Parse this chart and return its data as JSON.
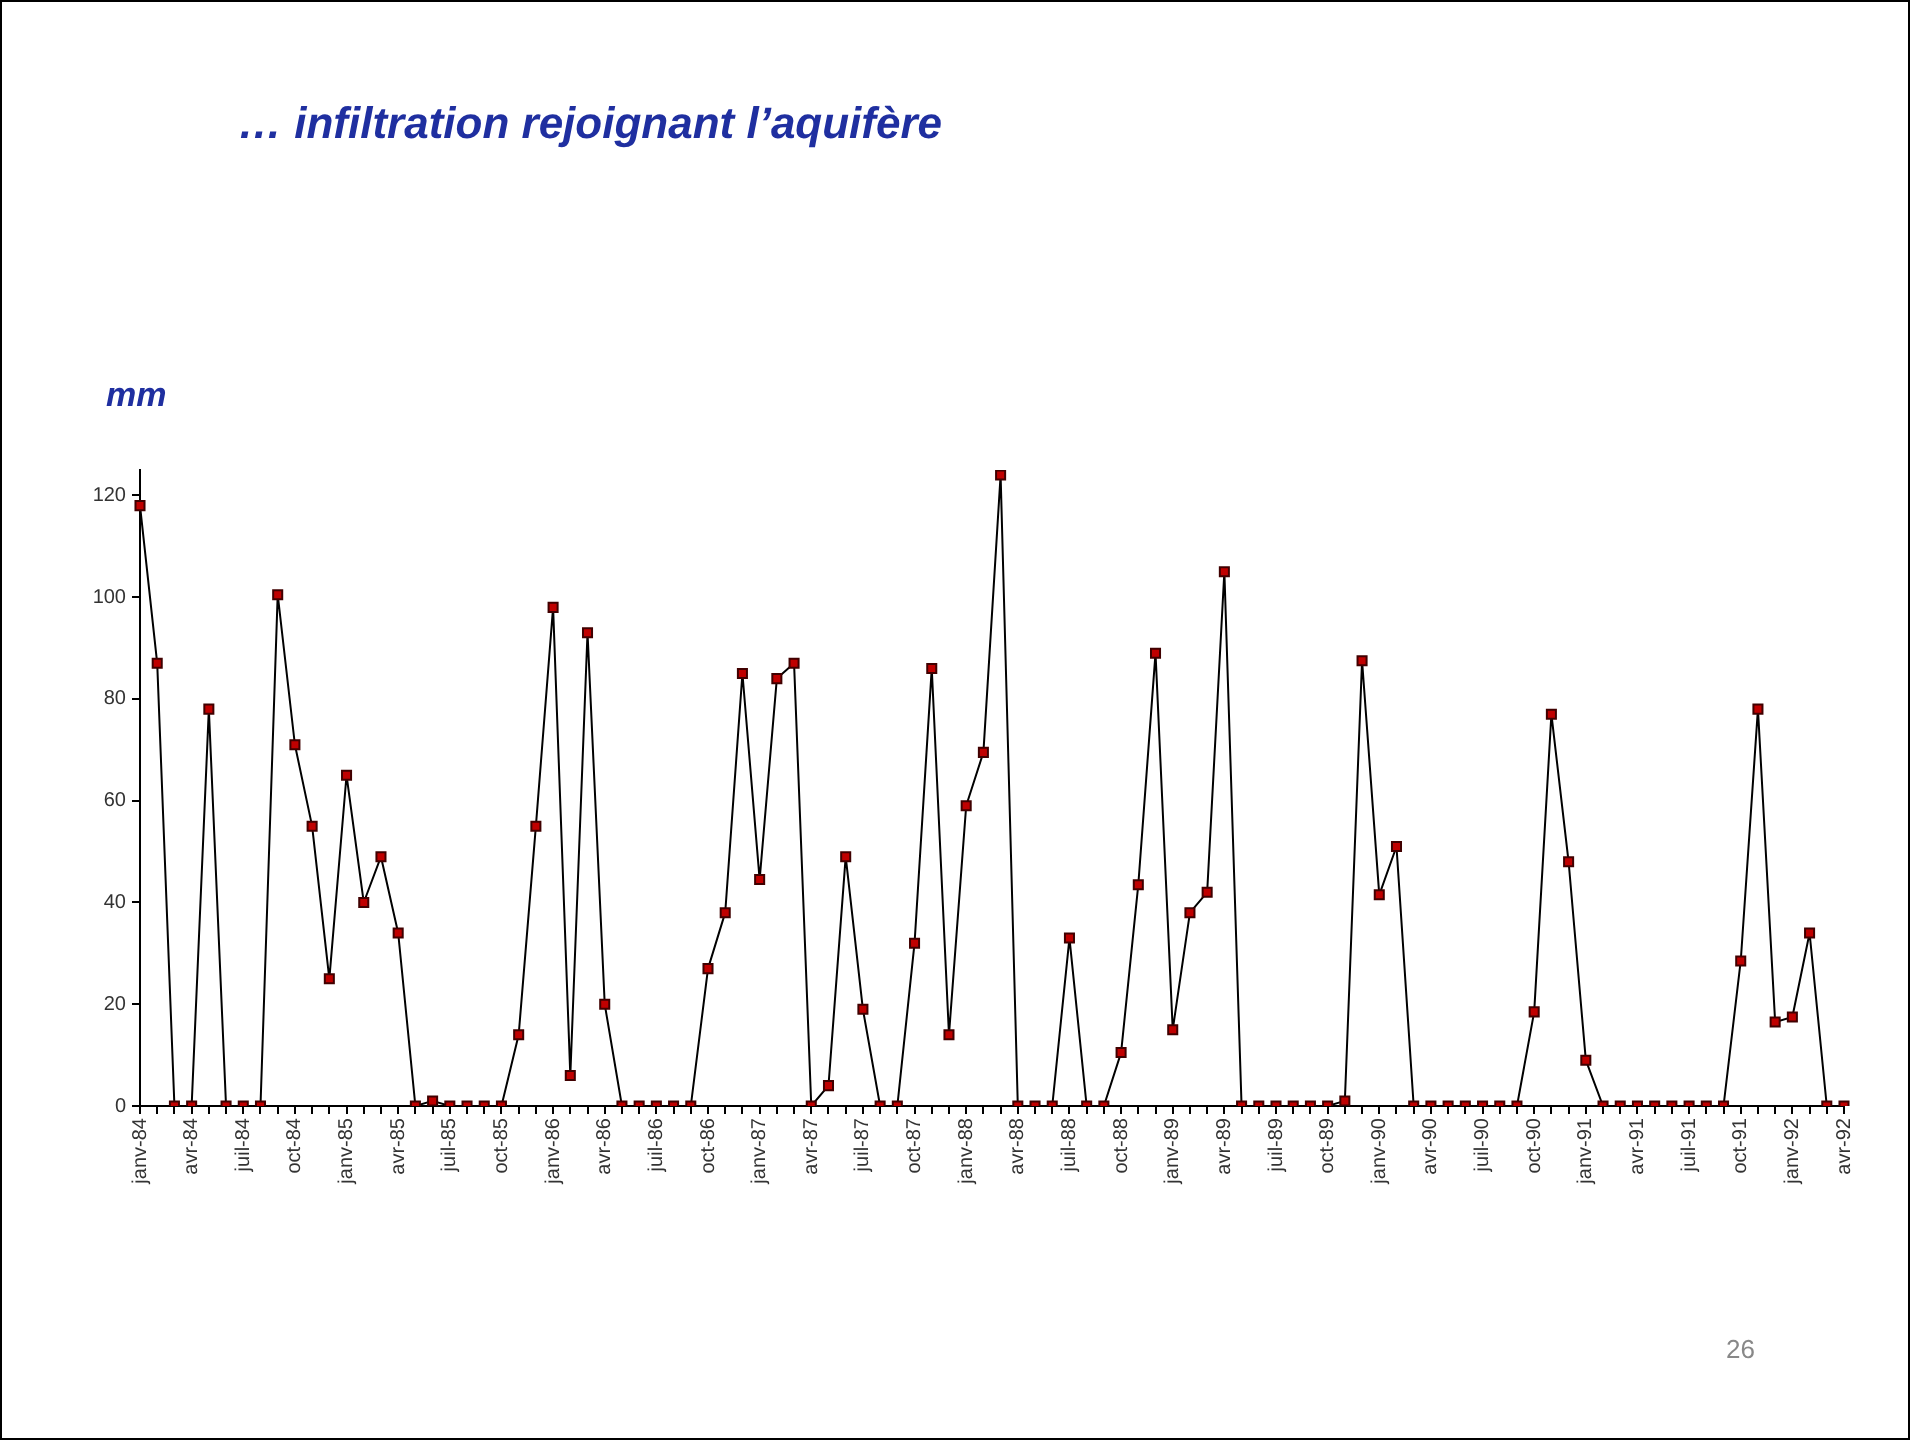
{
  "chart_data": {
    "type": "line",
    "title": "… infiltration rejoignant l’aquifère",
    "ylabel": "mm",
    "categories": [
      "janv-84",
      null,
      null,
      "avr-84",
      null,
      null,
      "juil-84",
      null,
      null,
      "oct-84",
      null,
      null,
      "janv-85",
      null,
      null,
      "avr-85",
      null,
      null,
      "juil-85",
      null,
      null,
      "oct-85",
      null,
      null,
      "janv-86",
      null,
      null,
      "avr-86",
      null,
      null,
      "juil-86",
      null,
      null,
      "oct-86",
      null,
      null,
      "janv-87",
      null,
      null,
      "avr-87",
      null,
      null,
      "juil-87",
      null,
      null,
      "oct-87",
      null,
      null,
      "janv-88",
      null,
      null,
      "avr-88",
      null,
      null,
      "juil-88",
      null,
      null,
      "oct-88",
      null,
      null,
      "janv-89",
      null,
      null,
      "avr-89",
      null,
      null,
      "juil-89",
      null,
      null,
      "oct-89",
      null,
      null,
      "janv-90",
      null,
      null,
      "avr-90",
      null,
      null,
      "juil-90",
      null,
      null,
      "oct-90",
      null,
      null,
      "janv-91",
      null,
      null,
      "avr-91",
      null,
      null,
      "juil-91",
      null,
      null,
      "oct-91",
      null,
      null,
      "janv-92",
      null,
      null,
      "avr-92"
    ],
    "series": [
      {
        "color": "#c00000",
        "values": [
          118,
          87,
          0,
          0,
          78,
          0,
          0,
          0,
          100.5,
          71,
          55,
          25,
          65,
          40,
          49,
          34,
          0,
          1,
          0,
          0,
          0,
          0,
          14,
          55,
          98,
          6,
          93,
          20,
          0,
          0,
          0,
          0,
          0,
          27,
          38,
          85,
          44.5,
          84,
          87,
          0,
          4,
          49,
          19,
          0,
          0,
          32,
          86,
          14,
          59,
          69.5,
          124,
          0,
          0,
          0,
          33,
          0,
          0,
          10.5,
          43.5,
          89,
          15,
          38,
          42,
          105,
          0,
          0,
          0,
          0,
          0,
          0,
          1,
          87.5,
          41.5,
          51,
          0,
          0,
          0,
          0,
          0,
          0,
          0,
          18.5,
          77,
          48,
          9,
          0,
          0,
          0,
          0,
          0,
          0,
          0,
          0,
          28.5,
          78,
          16.5,
          17.5,
          34,
          0,
          0
        ]
      }
    ],
    "ylim": [
      0,
      125
    ],
    "yticks": [
      0,
      20,
      40,
      60,
      80,
      100,
      120
    ],
    "grid": false,
    "legend": false,
    "marker": "square",
    "line_style": "solid",
    "annotations": [
      "26"
    ]
  }
}
